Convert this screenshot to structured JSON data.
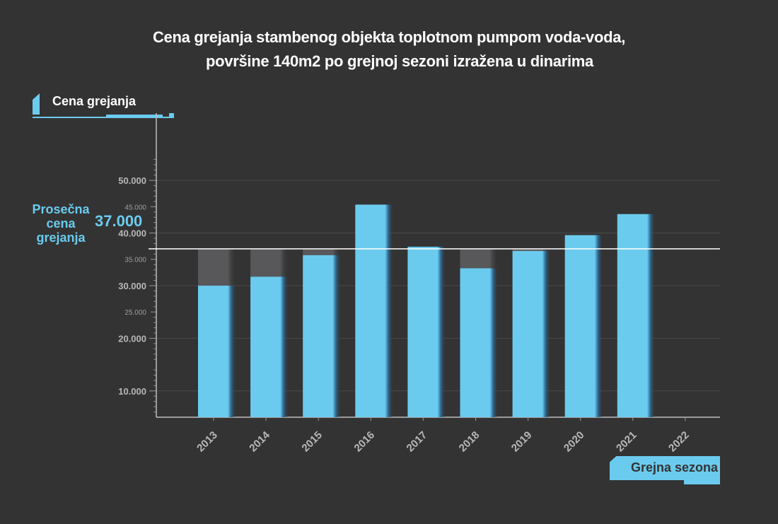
{
  "title": {
    "line1": "Cena grejanja stambenog objekta toplotnom pumpom voda-voda,",
    "line2": "površine 140m2 po grejnoj sezoni izražena u dinarima"
  },
  "y_tag": "Cena grejanja",
  "x_tag": "Grejna sezona",
  "average": {
    "label": "Prosečna cena grejanja",
    "label_lines": [
      "Prosečna",
      "cena",
      "grejanja"
    ],
    "value_text": "37.000",
    "value": 37000
  },
  "colors": {
    "background": "#333333",
    "bar": "#6bcbee",
    "gap": "#58585a",
    "accent": "#6bcbee",
    "text": "#ffffff",
    "tick": "#b8b8b8"
  },
  "chart_data": {
    "type": "bar",
    "title": "Cena grejanja stambenog objekta toplotnom pumpom voda-voda, površine 140m2 po grejnoj sezoni izražena u dinarima",
    "xlabel": "Grejna sezona",
    "ylabel": "Cena grejanja",
    "categories": [
      "2013",
      "2014",
      "2015",
      "2016",
      "2017",
      "2018",
      "2019",
      "2020",
      "2021",
      "2022"
    ],
    "values": [
      30000,
      31700,
      35800,
      45400,
      37400,
      33300,
      36600,
      39600,
      43600,
      null
    ],
    "reference_line": 37000,
    "ylim": [
      5000,
      55000
    ],
    "yticks_major": [
      {
        "value": 10000,
        "label": "10.000"
      },
      {
        "value": 20000,
        "label": "20.000"
      },
      {
        "value": 30000,
        "label": "30.000"
      },
      {
        "value": 40000,
        "label": "40.000"
      },
      {
        "value": 50000,
        "label": "50.000"
      }
    ],
    "yticks_minor": [
      {
        "value": 25000,
        "label": "25.000"
      },
      {
        "value": 35000,
        "label": "35.000"
      },
      {
        "value": 45000,
        "label": "45.000"
      }
    ],
    "grid": true
  }
}
